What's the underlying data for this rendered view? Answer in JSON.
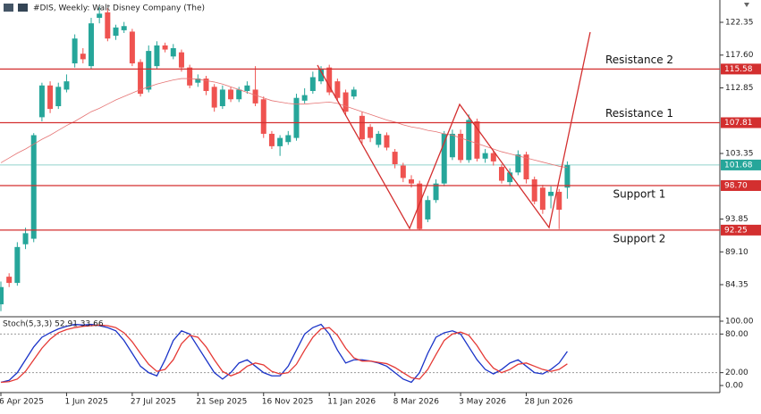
{
  "chart_data": [
    {
      "type": "candlestick",
      "title": "#DIS, Weekly: Walt Disney Company (The)",
      "categories": [
        "6 Apr 2025",
        null,
        null,
        null,
        null,
        null,
        null,
        null,
        "1 Jun 2025",
        null,
        null,
        null,
        null,
        null,
        null,
        null,
        "27 Jul 2025",
        null,
        null,
        null,
        null,
        null,
        null,
        null,
        "21 Sep 2025",
        null,
        null,
        null,
        null,
        null,
        null,
        null,
        "16 Nov 2025",
        null,
        null,
        null,
        null,
        null,
        null,
        null,
        "11 Jan 2026",
        null,
        null,
        null,
        null,
        null,
        null,
        null,
        "8 Mar 2026",
        null,
        null,
        null,
        null,
        null,
        null,
        null,
        "3 May 2026",
        null,
        null,
        null,
        null,
        null,
        null,
        null,
        "28 Jun 2026",
        null,
        null,
        null,
        null,
        null
      ],
      "open": [
        81.5,
        85.5,
        84.6,
        90.2,
        91.0,
        108.6,
        113.2,
        110.2,
        112.6,
        116.4,
        117.8,
        116.0,
        123.0,
        123.8,
        120.4,
        121.2,
        121.0,
        116.6,
        112.6,
        116.0,
        119.0,
        117.4,
        118.0,
        115.8,
        113.6,
        114.2,
        113.0,
        110.2,
        112.6,
        111.2,
        112.4,
        112.6,
        111.2,
        106.2,
        104.4,
        105.0,
        105.6,
        111.0,
        112.4,
        113.8,
        115.8,
        113.8,
        112.2,
        111.6,
        108.8,
        107.2,
        104.6,
        106.0,
        103.6,
        101.6,
        99.6,
        99.0,
        93.8,
        96.6,
        99.0,
        102.8,
        106.2,
        102.4,
        108.0,
        102.6,
        103.4,
        101.4,
        99.2,
        100.6,
        103.2,
        99.6,
        98.4,
        97.2,
        97.8,
        98.4
      ],
      "high": [
        84.8,
        86.0,
        90.5,
        92.6,
        106.3,
        113.6,
        113.8,
        113.6,
        114.8,
        120.6,
        118.6,
        123.0,
        124.6,
        124.4,
        122.0,
        122.4,
        121.4,
        117.0,
        119.0,
        119.6,
        119.4,
        119.2,
        118.4,
        116.2,
        114.8,
        114.6,
        113.4,
        113.2,
        113.0,
        113.0,
        113.8,
        116.0,
        111.6,
        106.6,
        106.0,
        106.6,
        112.0,
        112.8,
        115.2,
        116.0,
        116.2,
        114.2,
        112.6,
        113.0,
        109.4,
        107.6,
        106.6,
        106.4,
        104.0,
        102.0,
        100.2,
        99.4,
        97.2,
        99.6,
        106.6,
        106.8,
        106.8,
        109.0,
        108.4,
        104.0,
        103.8,
        101.8,
        101.2,
        103.8,
        103.6,
        100.0,
        98.8,
        98.6,
        98.2,
        102.2
      ],
      "low": [
        80.5,
        84.0,
        84.2,
        89.5,
        90.5,
        108.0,
        109.2,
        109.8,
        112.2,
        115.8,
        116.4,
        115.6,
        122.2,
        119.6,
        119.8,
        120.8,
        116.0,
        111.6,
        112.2,
        115.6,
        118.0,
        117.0,
        115.2,
        112.8,
        113.0,
        111.8,
        109.4,
        109.8,
        110.8,
        110.8,
        112.0,
        110.2,
        105.6,
        104.0,
        103.0,
        104.6,
        105.2,
        110.6,
        112.0,
        113.4,
        111.8,
        111.0,
        108.8,
        111.2,
        104.8,
        105.0,
        104.2,
        103.8,
        101.2,
        99.2,
        98.4,
        92.2,
        93.4,
        96.2,
        98.6,
        102.4,
        102.0,
        102.0,
        102.2,
        102.0,
        101.6,
        99.0,
        98.6,
        100.2,
        99.0,
        96.0,
        94.6,
        95.4,
        92.4,
        96.8
      ],
      "close": [
        84.0,
        84.6,
        89.8,
        91.8,
        106.0,
        113.2,
        109.8,
        113.0,
        113.8,
        120.0,
        117.0,
        122.2,
        123.6,
        120.0,
        121.6,
        121.8,
        116.4,
        112.0,
        118.2,
        119.0,
        118.4,
        118.6,
        115.8,
        113.2,
        114.2,
        112.4,
        110.0,
        112.6,
        111.2,
        112.6,
        113.2,
        110.6,
        106.2,
        104.4,
        105.6,
        106.0,
        111.4,
        111.8,
        114.4,
        115.6,
        112.2,
        111.4,
        109.4,
        112.6,
        105.4,
        105.6,
        106.2,
        104.2,
        101.8,
        99.8,
        99.0,
        92.4,
        96.6,
        99.0,
        106.2,
        106.2,
        102.4,
        108.2,
        102.6,
        103.4,
        102.2,
        99.4,
        100.6,
        103.2,
        99.6,
        96.4,
        95.2,
        97.8,
        95.2,
        101.68
      ],
      "up_color": "#26a69a",
      "down_color": "#ef5350",
      "ma": {
        "color": "#e57373",
        "values": [
          102.0,
          102.7,
          103.4,
          104.0,
          104.7,
          105.4,
          106.0,
          106.7,
          107.4,
          108.0,
          108.7,
          109.4,
          109.9,
          110.5,
          111.1,
          111.6,
          112.1,
          112.6,
          113.0,
          113.4,
          113.7,
          114.0,
          114.2,
          114.2,
          114.1,
          113.9,
          113.7,
          113.4,
          113.0,
          112.6,
          112.2,
          111.8,
          111.4,
          111.0,
          110.8,
          110.6,
          110.5,
          110.5,
          110.6,
          110.7,
          110.8,
          110.6,
          110.2,
          109.8,
          109.4,
          109.0,
          108.6,
          108.2,
          107.9,
          107.5,
          107.2,
          107.0,
          106.7,
          106.5,
          106.2,
          106.0,
          105.6,
          105.2,
          104.8,
          104.4,
          104.0,
          103.6,
          103.3,
          103.0,
          102.7,
          102.4,
          102.1,
          101.8,
          101.5,
          101.3
        ]
      },
      "levels": [
        {
          "name": "Resistance 2",
          "value": 115.58
        },
        {
          "name": "Resistance 1",
          "value": 107.81
        },
        {
          "name": "Support 1",
          "value": 98.7,
          "label": "98.70"
        },
        {
          "name": "Support 2",
          "value": 92.25
        }
      ],
      "level_color": "#d32f2f",
      "current_price": 101.68,
      "current_color": "#26a69a",
      "ylim": [
        79.7,
        125.58
      ],
      "yticks": [
        122.35,
        {
          "value": 117.6,
          "label": "117.60"
        },
        112.85,
        103.35,
        93.85,
        {
          "value": 89.1,
          "label": "89.10"
        },
        84.35
      ]
    },
    {
      "type": "line",
      "title": "Stoch(5,3,3) 52.91 33.66",
      "series": [
        {
          "color": "#1a33c8",
          "values": [
            5,
            8,
            20,
            40,
            60,
            75,
            82,
            88,
            92,
            95,
            94,
            95,
            93,
            90,
            85,
            70,
            50,
            30,
            20,
            15,
            40,
            70,
            85,
            80,
            60,
            40,
            20,
            10,
            20,
            35,
            40,
            30,
            20,
            15,
            15,
            30,
            55,
            80,
            90,
            95,
            80,
            55,
            35,
            40,
            40,
            38,
            35,
            30,
            20,
            10,
            5,
            20,
            50,
            75,
            82,
            85,
            80,
            60,
            40,
            25,
            18,
            25,
            35,
            40,
            30,
            20,
            18,
            25,
            35,
            52.91
          ]
        },
        {
          "color": "#e53935",
          "values": [
            5,
            6,
            10,
            22,
            40,
            58,
            72,
            82,
            87,
            90,
            92,
            93,
            94,
            93,
            90,
            82,
            68,
            50,
            33,
            22,
            25,
            40,
            65,
            78,
            75,
            60,
            40,
            22,
            15,
            20,
            30,
            35,
            32,
            22,
            18,
            20,
            33,
            55,
            75,
            88,
            90,
            78,
            58,
            43,
            38,
            38,
            36,
            34,
            28,
            20,
            12,
            10,
            25,
            48,
            70,
            80,
            83,
            78,
            62,
            42,
            27,
            20,
            25,
            33,
            35,
            30,
            25,
            22,
            25,
            33.66
          ]
        }
      ],
      "ylim": [
        -11,
        105.5
      ],
      "yticks": [
        {
          "value": 100,
          "label": "100.00"
        },
        {
          "value": 80,
          "label": "80.00"
        },
        {
          "value": 20,
          "label": "20.00"
        },
        {
          "value": 0,
          "label": "0.00"
        }
      ],
      "grid_ticks": [
        1,
        2
      ]
    }
  ]
}
